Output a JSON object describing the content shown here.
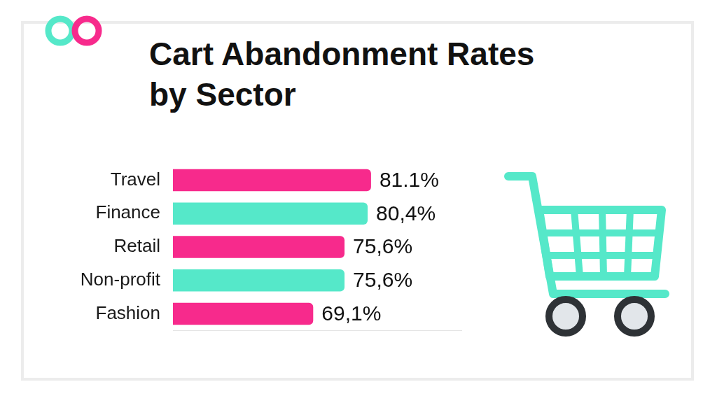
{
  "chart_data": {
    "type": "bar",
    "orientation": "horizontal",
    "title": "Cart Abandonment Rates by Sector",
    "categories": [
      "Travel",
      "Finance",
      "Retail",
      "Non-profit",
      "Fashion"
    ],
    "values": [
      81.1,
      80.4,
      75.6,
      75.6,
      69.1
    ],
    "value_labels": [
      "81.1%",
      "80,4%",
      "75,6%",
      "75,6%",
      "69,1%"
    ],
    "colors": [
      "#f72a8c",
      "#55e8c9",
      "#f72a8c",
      "#55e8c9",
      "#f72a8c"
    ],
    "xlim": [
      40,
      100
    ],
    "data_labels": true,
    "tick_labels": "y",
    "grid": false
  }
}
